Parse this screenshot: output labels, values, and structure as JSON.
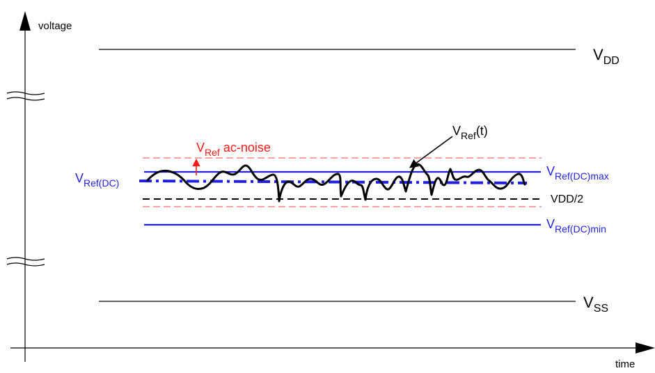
{
  "axes": {
    "y_label": "voltage",
    "x_label": "time"
  },
  "levels": {
    "vdd": {
      "main": "V",
      "sub": "DD"
    },
    "vss": {
      "main": "V",
      "sub": "SS"
    },
    "vref_dc": {
      "main": "V",
      "sub": "Ref(DC)"
    },
    "vref_dc_max": {
      "main": "V",
      "sub": "Ref(DC)max"
    },
    "vref_dc_min": {
      "main": "V",
      "sub": "Ref(DC)min"
    },
    "vdd_half": "VDD/2"
  },
  "annotations": {
    "ac_noise": {
      "main": "V",
      "sub": "Ref",
      "rest": " ac-noise"
    },
    "vref_t": {
      "main": "V",
      "sub": "Ref",
      "rest": "(t)"
    }
  },
  "colors": {
    "black": "#000000",
    "blue": "#1f1fe0",
    "red": "#ff1a1a",
    "light_red": "#ff7a7a"
  }
}
